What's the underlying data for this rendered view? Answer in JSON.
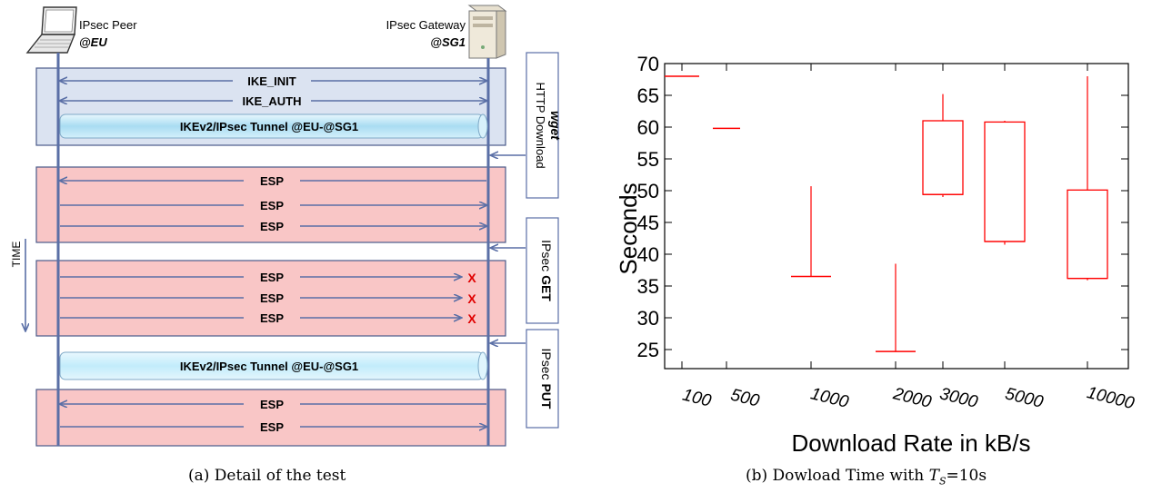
{
  "figure_a": {
    "caption": "(a) Detail of the test",
    "peer": {
      "title": "IPsec Peer",
      "address": "@EU"
    },
    "gateway": {
      "title": "IPsec Gateway",
      "address": "@SG1"
    },
    "time_label": "TIME",
    "ike_init": "IKE_INIT",
    "ike_auth": "IKE_AUTH",
    "tunnel_label": "IKEv2/IPsec Tunnel @EU-@SG1",
    "esp": "ESP",
    "drop_mark": "X",
    "box_http": {
      "prefix": "HTTP Download",
      "emph": "wget"
    },
    "box_get": {
      "prefix": "IPsec",
      "emph": "GET"
    },
    "box_put": {
      "prefix": "IPsec",
      "emph": "PUT"
    },
    "colors": {
      "blue_panel": "#dbe3f1",
      "red_panel": "#f9c6c6",
      "arrow": "#5a6fa6",
      "tunnel": "#bfe6f6",
      "drop": "#e00000"
    }
  },
  "figure_b": {
    "caption_prefix": "(b) Dowload Time with ",
    "caption_var": "T",
    "caption_sub": "S",
    "caption_suffix": "=10s"
  },
  "chart_data": {
    "type": "box",
    "xlabel": "Download Rate in kB/s",
    "ylabel": "Seconds",
    "ylim": [
      22,
      70
    ],
    "yticks": [
      25,
      30,
      35,
      40,
      45,
      50,
      55,
      60,
      65,
      70
    ],
    "color": "#ff0000",
    "boxes": [
      {
        "label": "100",
        "min": 68,
        "q1": 68,
        "median": 68,
        "q3": 68,
        "max": 68
      },
      {
        "label": "500",
        "min": 59.8,
        "q1": 59.8,
        "median": 59.8,
        "q3": 59.8,
        "max": 59.8
      },
      {
        "label": "1000",
        "min": 36.5,
        "q1": 36.5,
        "median": 36.5,
        "q3": 36.5,
        "max": 50.7
      },
      {
        "label": "2000",
        "min": 24.7,
        "q1": 24.7,
        "median": 24.7,
        "q3": 24.7,
        "max": 38.5
      },
      {
        "label": "3000",
        "min": 49,
        "q1": 49.4,
        "median": 49.4,
        "q3": 61,
        "max": 65.2
      },
      {
        "label": "5000",
        "min": 41.5,
        "q1": 42,
        "median": 42,
        "q3": 60.8,
        "max": 61
      },
      {
        "label": "10000",
        "min": 35.9,
        "q1": 36.2,
        "median": 36.2,
        "q3": 50.1,
        "max": 68
      }
    ]
  }
}
